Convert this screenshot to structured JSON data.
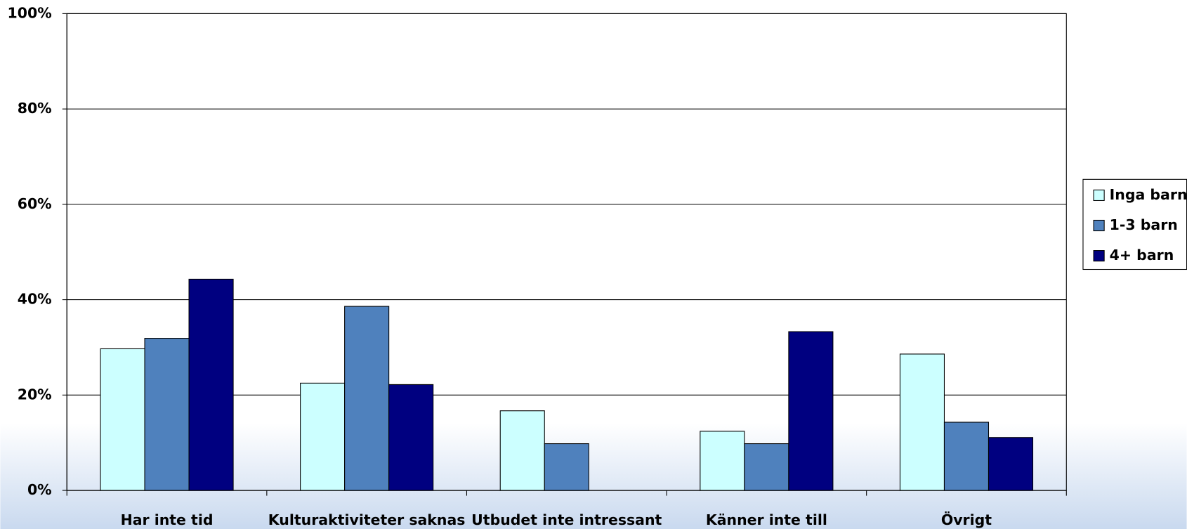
{
  "chart_data": {
    "type": "bar",
    "categories": [
      "Har inte tid",
      "Kulturaktiviteter saknas",
      "Utbudet inte intressant",
      "Känner inte till",
      "Övrigt"
    ],
    "series": [
      {
        "name": "Inga barn",
        "color": "#ccffff",
        "values": [
          29.7,
          22.5,
          16.7,
          12.4,
          28.6
        ]
      },
      {
        "name": "1-3 barn",
        "color": "#4f81bd",
        "values": [
          31.9,
          38.6,
          9.8,
          9.8,
          14.3
        ]
      },
      {
        "name": "4+ barn",
        "color": "#000080",
        "values": [
          44.3,
          22.2,
          0,
          33.3,
          11.1
        ]
      }
    ],
    "ylim": [
      0,
      100
    ],
    "yticks": [
      {
        "value": 0,
        "label": "0%"
      },
      {
        "value": 20,
        "label": "20%"
      },
      {
        "value": 40,
        "label": "40%"
      },
      {
        "value": 60,
        "label": "60%"
      },
      {
        "value": 80,
        "label": "80%"
      },
      {
        "value": 100,
        "label": "100%"
      }
    ],
    "grid": true,
    "legend": "right"
  }
}
